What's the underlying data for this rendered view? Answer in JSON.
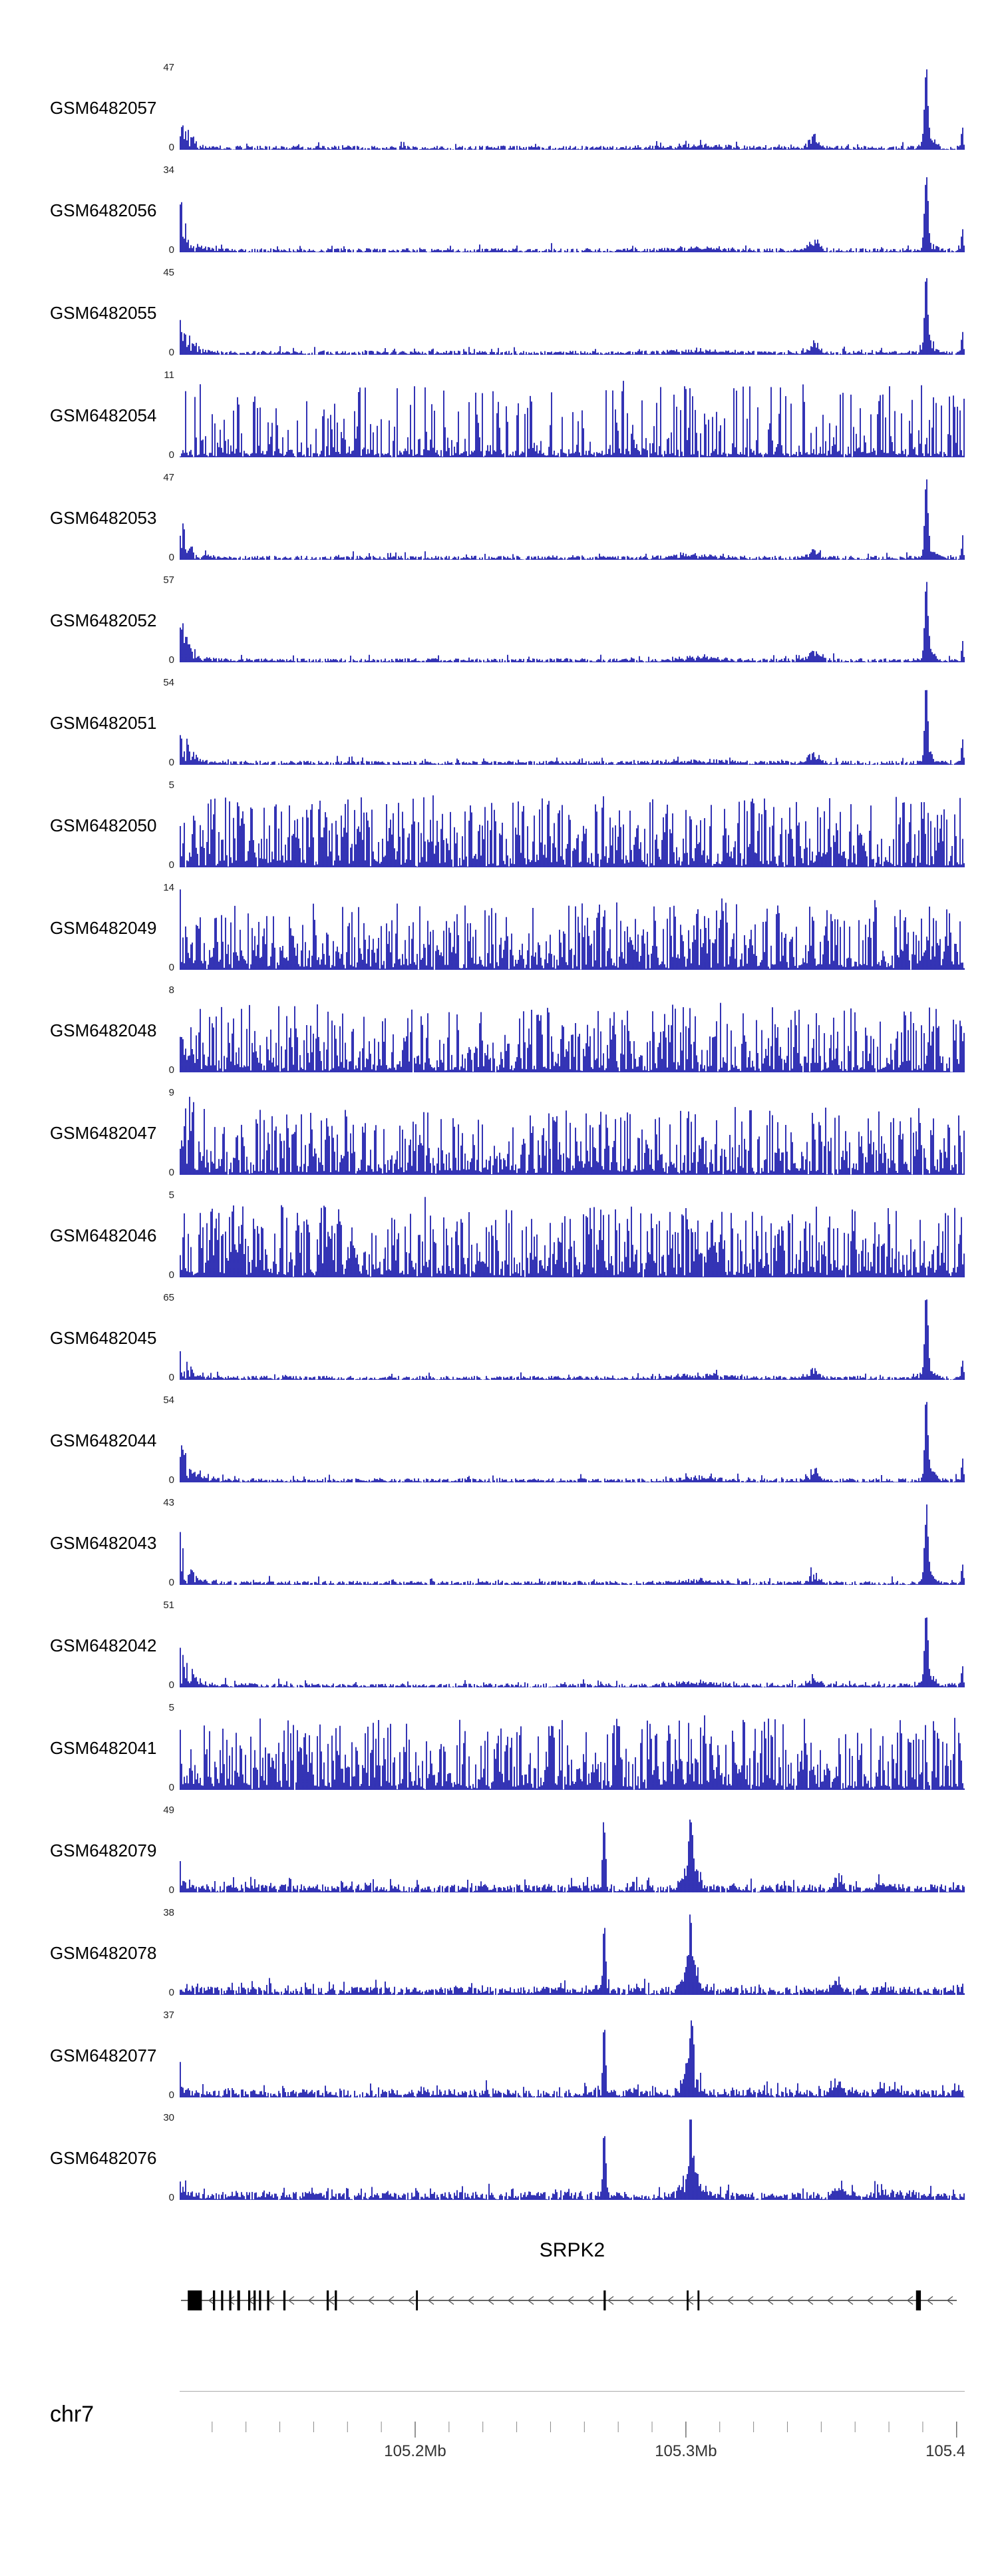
{
  "figure": {
    "signal_color": "#1010a8",
    "background": "#ffffff"
  },
  "chart_data": {
    "type": "area",
    "description": "Genome browser coverage tracks over chr7 SRPK2 locus",
    "region": {
      "chromosome": "chr7",
      "start_mb": 105.113,
      "end_mb": 105.403
    },
    "x_axis": {
      "minor_tick_interval_mb": 0.0125,
      "major_ticks": [
        {
          "mb": 105.2,
          "label": "105.2Mb"
        },
        {
          "mb": 105.3,
          "label": "105.3Mb"
        },
        {
          "mb": 105.4,
          "label": "105.4Mb"
        }
      ]
    },
    "tracks": [
      {
        "name": "GSM6482057",
        "ymin": "0",
        "ymax": "47",
        "pattern": "promoter_peak_right"
      },
      {
        "name": "GSM6482056",
        "ymin": "0",
        "ymax": "34",
        "pattern": "promoter_peak_right"
      },
      {
        "name": "GSM6482055",
        "ymin": "0",
        "ymax": "45",
        "pattern": "promoter_peak_right"
      },
      {
        "name": "GSM6482054",
        "ymin": "0",
        "ymax": "11",
        "pattern": "input_noise_sparse"
      },
      {
        "name": "GSM6482053",
        "ymin": "0",
        "ymax": "47",
        "pattern": "promoter_peak_right"
      },
      {
        "name": "GSM6482052",
        "ymin": "0",
        "ymax": "57",
        "pattern": "promoter_peak_right"
      },
      {
        "name": "GSM6482051",
        "ymin": "0",
        "ymax": "54",
        "pattern": "promoter_peak_right"
      },
      {
        "name": "GSM6482050",
        "ymin": "0",
        "ymax": "5",
        "pattern": "input_noise"
      },
      {
        "name": "GSM6482049",
        "ymin": "0",
        "ymax": "14",
        "pattern": "input_noise_left"
      },
      {
        "name": "GSM6482048",
        "ymin": "0",
        "ymax": "8",
        "pattern": "input_noise_left"
      },
      {
        "name": "GSM6482047",
        "ymin": "0",
        "ymax": "9",
        "pattern": "input_noise_left"
      },
      {
        "name": "GSM6482046",
        "ymin": "0",
        "ymax": "5",
        "pattern": "input_noise"
      },
      {
        "name": "GSM6482045",
        "ymin": "0",
        "ymax": "65",
        "pattern": "promoter_peak_right"
      },
      {
        "name": "GSM6482044",
        "ymin": "0",
        "ymax": "54",
        "pattern": "promoter_peak_right"
      },
      {
        "name": "GSM6482043",
        "ymin": "0",
        "ymax": "43",
        "pattern": "promoter_peak_right"
      },
      {
        "name": "GSM6482042",
        "ymin": "0",
        "ymax": "51",
        "pattern": "promoter_peak_right"
      },
      {
        "name": "GSM6482041",
        "ymin": "0",
        "ymax": "5",
        "pattern": "input_noise"
      },
      {
        "name": "GSM6482079",
        "ymin": "0",
        "ymax": "49",
        "pattern": "gene_body_peaks"
      },
      {
        "name": "GSM6482078",
        "ymin": "0",
        "ymax": "38",
        "pattern": "gene_body_peaks"
      },
      {
        "name": "GSM6482077",
        "ymin": "0",
        "ymax": "37",
        "pattern": "gene_body_peaks"
      },
      {
        "name": "GSM6482076",
        "ymin": "0",
        "ymax": "30",
        "pattern": "gene_body_peaks"
      }
    ],
    "patterns": {
      "promoter_peak_right": {
        "baseline": 0.05,
        "spike_prob": 0.07,
        "spike_height": 0.07,
        "left_burst": {
          "decay": 0.011,
          "height": 0.72
        },
        "peaks": [
          {
            "pos": 0.951,
            "sigma": 0.002,
            "height": 1.0
          },
          {
            "pos": 0.955,
            "sigma": 0.006,
            "height": 0.18,
            "spiky": true
          },
          {
            "pos": 0.808,
            "sigma": 0.006,
            "height": 0.16,
            "spiky": true
          },
          {
            "pos": 0.997,
            "sigma": 0.0012,
            "height": 0.3
          },
          {
            "pos": 0.66,
            "sigma": 0.03,
            "height": 0.04,
            "spiky": true
          }
        ]
      },
      "input_noise": {
        "baseline": 0.06,
        "dense": true,
        "dense_pow": 2.0,
        "dense_height": 0.85,
        "spike_prob": 0.02,
        "spike_height": 0.15
      },
      "input_noise_sparse": {
        "baseline": 0.05,
        "dense": true,
        "dense_pow": 2.6,
        "dense_height": 0.9,
        "gap_prob": 0.3,
        "spike_prob": 0.02,
        "spike_height": 0.12
      },
      "input_noise_left": {
        "baseline": 0.06,
        "dense": true,
        "dense_pow": 2.2,
        "dense_height": 0.8,
        "spike_prob": 0.02,
        "spike_height": 0.12,
        "left_burst": {
          "decay": 0.018,
          "height": 0.5
        }
      },
      "gene_body_peaks": {
        "baseline": 0.1,
        "spike_prob": 0.12,
        "spike_height": 0.12,
        "left_burst": {
          "decay": 0.006,
          "height": 0.35
        },
        "peaks": [
          {
            "pos": 0.541,
            "sigma": 0.0017,
            "height": 1.0
          },
          {
            "pos": 0.651,
            "sigma": 0.008,
            "height": 0.5,
            "spiky": true
          },
          {
            "pos": 0.651,
            "sigma": 0.002,
            "height": 0.75
          },
          {
            "pos": 0.838,
            "sigma": 0.006,
            "height": 0.16,
            "spiky": true
          },
          {
            "pos": 0.9,
            "sigma": 0.01,
            "height": 0.07,
            "spiky": true
          }
        ]
      }
    },
    "gene": {
      "name": "SRPK2",
      "strand": "-",
      "exons_mb": [
        [
          105.116,
          105.1212
        ],
        [
          105.1253,
          105.1261
        ],
        [
          105.1283,
          105.1291
        ],
        [
          105.1313,
          105.1321
        ],
        [
          105.1343,
          105.1353
        ],
        [
          105.1383,
          105.1391
        ],
        [
          105.1403,
          105.1411
        ],
        [
          105.1423,
          105.1431
        ],
        [
          105.1453,
          105.1461
        ],
        [
          105.1513,
          105.1521
        ],
        [
          105.1673,
          105.1681
        ],
        [
          105.1703,
          105.1711
        ],
        [
          105.2003,
          105.201
        ],
        [
          105.2696,
          105.2704
        ],
        [
          105.3003,
          105.301
        ],
        [
          105.3043,
          105.305
        ],
        [
          105.385,
          105.3868
        ]
      ]
    }
  }
}
